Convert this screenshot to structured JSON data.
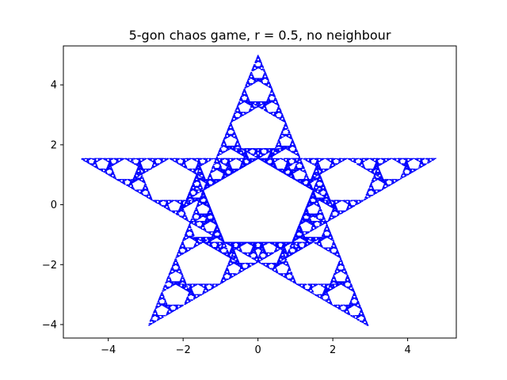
{
  "chart_data": {
    "type": "scatter",
    "title": "5-gon chaos game, r = 0.5, no neighbour",
    "xlabel": "",
    "ylabel": "",
    "xlim": [
      -5.2,
      5.3
    ],
    "ylim": [
      -4.45,
      5.3
    ],
    "xticks": [
      -4,
      -2,
      0,
      2,
      4
    ],
    "xtick_labels": [
      "−4",
      "−2",
      "0",
      "2",
      "4"
    ],
    "yticks": [
      -4,
      -2,
      0,
      2,
      4
    ],
    "ytick_labels": [
      "−4",
      "−2",
      "0",
      "2",
      "4"
    ],
    "grid": false,
    "legend": "none",
    "point_color": "#0000ff",
    "ratio": 0.5,
    "rule": "no neighbour",
    "polygon_sides": 5,
    "vertices": [
      {
        "x": 0.0,
        "y": 5.0
      },
      {
        "x": 4.755,
        "y": 1.545
      },
      {
        "x": 2.939,
        "y": -4.045
      },
      {
        "x": -2.939,
        "y": -4.045
      },
      {
        "x": -4.755,
        "y": 1.545
      }
    ]
  }
}
